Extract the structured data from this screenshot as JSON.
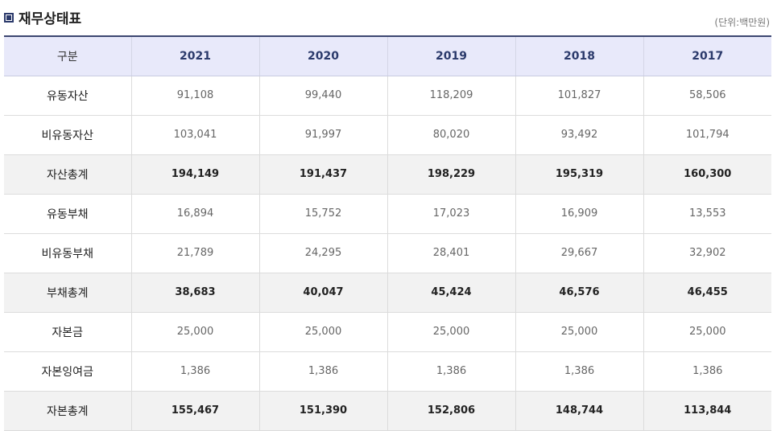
{
  "title": "재무상태표",
  "unit": "(단위:백만원)",
  "columns": [
    "구분",
    "2021",
    "2020",
    "2019",
    "2018",
    "2017"
  ],
  "rows": [
    {
      "label": "유동자산",
      "values": [
        "91,108",
        "99,440",
        "118,209",
        "101,827",
        "58,506"
      ],
      "total": false
    },
    {
      "label": "비유동자산",
      "values": [
        "103,041",
        "91,997",
        "80,020",
        "93,492",
        "101,794"
      ],
      "total": false
    },
    {
      "label": "자산총계",
      "values": [
        "194,149",
        "191,437",
        "198,229",
        "195,319",
        "160,300"
      ],
      "total": true
    },
    {
      "label": "유동부채",
      "values": [
        "16,894",
        "15,752",
        "17,023",
        "16,909",
        "13,553"
      ],
      "total": false
    },
    {
      "label": "비유동부채",
      "values": [
        "21,789",
        "24,295",
        "28,401",
        "29,667",
        "32,902"
      ],
      "total": false
    },
    {
      "label": "부채총계",
      "values": [
        "38,683",
        "40,047",
        "45,424",
        "46,576",
        "46,455"
      ],
      "total": true
    },
    {
      "label": "자본금",
      "values": [
        "25,000",
        "25,000",
        "25,000",
        "25,000",
        "25,000"
      ],
      "total": false
    },
    {
      "label": "자본잉여금",
      "values": [
        "1,386",
        "1,386",
        "1,386",
        "1,386",
        "1,386"
      ],
      "total": false
    },
    {
      "label": "자본총계",
      "values": [
        "155,467",
        "151,390",
        "152,806",
        "148,744",
        "113,844"
      ],
      "total": true
    }
  ]
}
